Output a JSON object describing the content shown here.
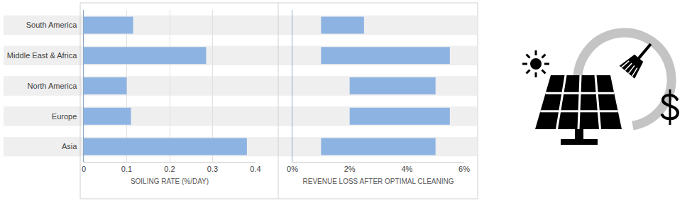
{
  "chart_data": [
    {
      "type": "bar",
      "orientation": "horizontal",
      "categories": [
        "South America",
        "Middle East & Africa",
        "North America",
        "Europe",
        "Asia"
      ],
      "values": [
        0.115,
        0.285,
        0.1,
        0.11,
        0.38
      ],
      "color": "#8db3e2",
      "xlabel": "SOILING RATE (%/DAY)",
      "xlim": [
        0,
        0.4
      ],
      "xticks": [
        0,
        0.1,
        0.2,
        0.3,
        0.4
      ],
      "grid": true
    },
    {
      "type": "bar",
      "orientation": "horizontal",
      "categories": [
        "South America",
        "Middle East & Africa",
        "North America",
        "Europe",
        "Asia"
      ],
      "low": [
        1,
        1,
        2,
        2,
        1
      ],
      "high": [
        2.5,
        5.5,
        5,
        5.5,
        5
      ],
      "color": "#8db3e2",
      "xlabel": "REVENUE LOSS AFTER OPTIMAL CLEANING",
      "xlim": [
        0,
        6
      ],
      "xticks": [
        {
          "value": 0,
          "label": "0%"
        },
        {
          "value": 2,
          "label": "2%"
        },
        {
          "value": 4,
          "label": "4%"
        },
        {
          "value": 6,
          "label": "6%"
        }
      ],
      "grid": false,
      "tick_labels": "x"
    }
  ]
}
